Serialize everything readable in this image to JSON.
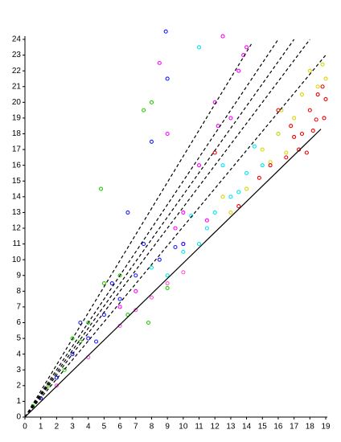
{
  "chart_data": {
    "type": "scatter",
    "xlim": [
      0,
      19
    ],
    "ylim": [
      0,
      24
    ],
    "xticks": [
      0,
      1,
      2,
      3,
      4,
      5,
      6,
      7,
      8,
      9,
      10,
      11,
      12,
      13,
      14,
      15,
      16,
      17,
      18,
      19
    ],
    "yticks": [
      0,
      1,
      2,
      3,
      4,
      5,
      6,
      7,
      8,
      9,
      10,
      11,
      12,
      13,
      14,
      15,
      16,
      17,
      18,
      19,
      20,
      21,
      22,
      23,
      24
    ],
    "series": [
      {
        "color": "#ff00ff",
        "x": [
          8.5,
          9,
          10,
          11,
          12,
          12.5,
          13,
          13.5,
          14,
          7,
          6,
          9.5,
          11.5,
          10,
          12.2,
          13.8
        ],
        "values": [
          22.5,
          18,
          13,
          16,
          20,
          24.2,
          19,
          22,
          23.5,
          8,
          7,
          12,
          12.5,
          11,
          18.5,
          23
        ]
      },
      {
        "color": "#00e5ee",
        "x": [
          9,
          10,
          11,
          11.5,
          12,
          13,
          14,
          15,
          16,
          10.5,
          13.5,
          11,
          12.5,
          14.5,
          8
        ],
        "values": [
          9,
          10.5,
          23.5,
          12,
          13,
          14,
          15.5,
          16,
          18,
          12.8,
          14.3,
          11,
          16,
          17.2,
          9.5
        ]
      },
      {
        "color": "#d8d800",
        "x": [
          14,
          15,
          16,
          17,
          18,
          18.5,
          19,
          16.5,
          17.5,
          13,
          15.5,
          12.5,
          18.8,
          16.2
        ],
        "values": [
          14.5,
          17,
          18,
          19,
          22,
          21,
          21.5,
          16.8,
          20.5,
          13,
          16.2,
          14,
          22.4,
          19.5
        ]
      },
      {
        "color": "#ee0000",
        "x": [
          16.5,
          17,
          17.5,
          18,
          18.2,
          18.5,
          18.8,
          19,
          17.8,
          16.8,
          15.5,
          14.8,
          18.9,
          18.4,
          17.3,
          16,
          13.5,
          12
        ],
        "values": [
          16.5,
          17.8,
          18,
          19.5,
          18.2,
          20.5,
          21,
          20.2,
          16.8,
          18.5,
          16,
          15.2,
          19,
          18.9,
          17,
          19.5,
          13.4,
          16.8
        ]
      },
      {
        "color": "#22cc00",
        "x": [
          0.5,
          1.5,
          2.5,
          3,
          4,
          5,
          6,
          7.5,
          8,
          4.8,
          6.5,
          3.5,
          7.8,
          9
        ],
        "values": [
          0.7,
          2,
          3,
          5,
          6,
          8.5,
          9,
          19.5,
          20,
          14.5,
          6.5,
          4.8,
          6,
          8.2
        ]
      },
      {
        "color": "#1a1aff",
        "x": [
          1,
          2,
          3,
          4,
          5,
          6,
          7,
          8,
          8.5,
          8.9,
          9,
          3.5,
          5.5,
          7.5,
          9.5,
          10,
          6.5,
          4.5
        ],
        "values": [
          1.2,
          2.5,
          4,
          5,
          6.5,
          7.5,
          9,
          17.5,
          10,
          24.5,
          21.5,
          6,
          8.5,
          11,
          10.8,
          11,
          13,
          4.8
        ]
      },
      {
        "color": "#ff55dd",
        "x": [
          2,
          4,
          6,
          7,
          8,
          9,
          10
        ],
        "values": [
          2,
          3.8,
          5.8,
          6.8,
          7.6,
          8.5,
          9.2
        ]
      }
    ],
    "lines": [
      {
        "color": "#000000",
        "dashed": false,
        "x": [
          0,
          18.7
        ],
        "values": [
          0,
          18.3
        ]
      },
      {
        "color": "#000000",
        "dashed": true,
        "x": [
          0,
          14.3
        ],
        "values": [
          0,
          23.7
        ]
      },
      {
        "color": "#000000",
        "dashed": true,
        "x": [
          0,
          16
        ],
        "values": [
          0,
          24
        ]
      },
      {
        "color": "#000000",
        "dashed": true,
        "x": [
          0,
          17
        ],
        "values": [
          0,
          24
        ]
      },
      {
        "color": "#000000",
        "dashed": true,
        "x": [
          0,
          18
        ],
        "values": [
          0,
          24
        ]
      },
      {
        "color": "#000000",
        "dashed": true,
        "x": [
          0,
          19
        ],
        "values": [
          0,
          23
        ]
      }
    ]
  }
}
